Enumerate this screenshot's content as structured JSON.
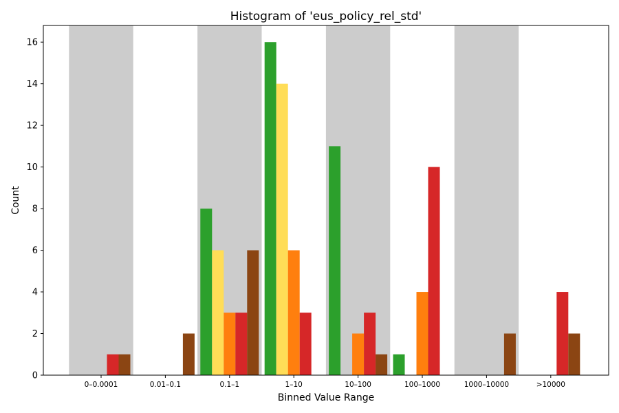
{
  "chart_data": {
    "type": "bar",
    "title": "Histogram of 'eus_policy_rel_std'",
    "xlabel": "Binned Value Range",
    "ylabel": "Count",
    "categories": [
      "0–0.0001",
      "0.01–0.1",
      "0.1–1",
      "1–10",
      "10–100",
      "100–1000",
      "1000–10000",
      ">10000"
    ],
    "ylim": [
      0,
      16.8
    ],
    "yticks": [
      0,
      2,
      4,
      6,
      8,
      10,
      12,
      14,
      16
    ],
    "grid": false,
    "legend": "none",
    "background_bands": "alternating gray behind every other bin",
    "colors": {
      "band": "#cccccc",
      "series": [
        "#2ca02c",
        "#ffdd57",
        "#ff7f0e",
        "#d62728",
        "#8b4513"
      ]
    },
    "series": [
      {
        "values": [
          0,
          0,
          8,
          16,
          11,
          1,
          0,
          0
        ]
      },
      {
        "values": [
          0,
          0,
          6,
          14,
          0,
          0,
          0,
          0
        ]
      },
      {
        "values": [
          0,
          0,
          3,
          6,
          2,
          4,
          0,
          0
        ]
      },
      {
        "values": [
          1,
          0,
          3,
          3,
          3,
          10,
          0,
          4
        ]
      },
      {
        "values": [
          1,
          2,
          6,
          0,
          1,
          0,
          2,
          2
        ]
      }
    ]
  }
}
